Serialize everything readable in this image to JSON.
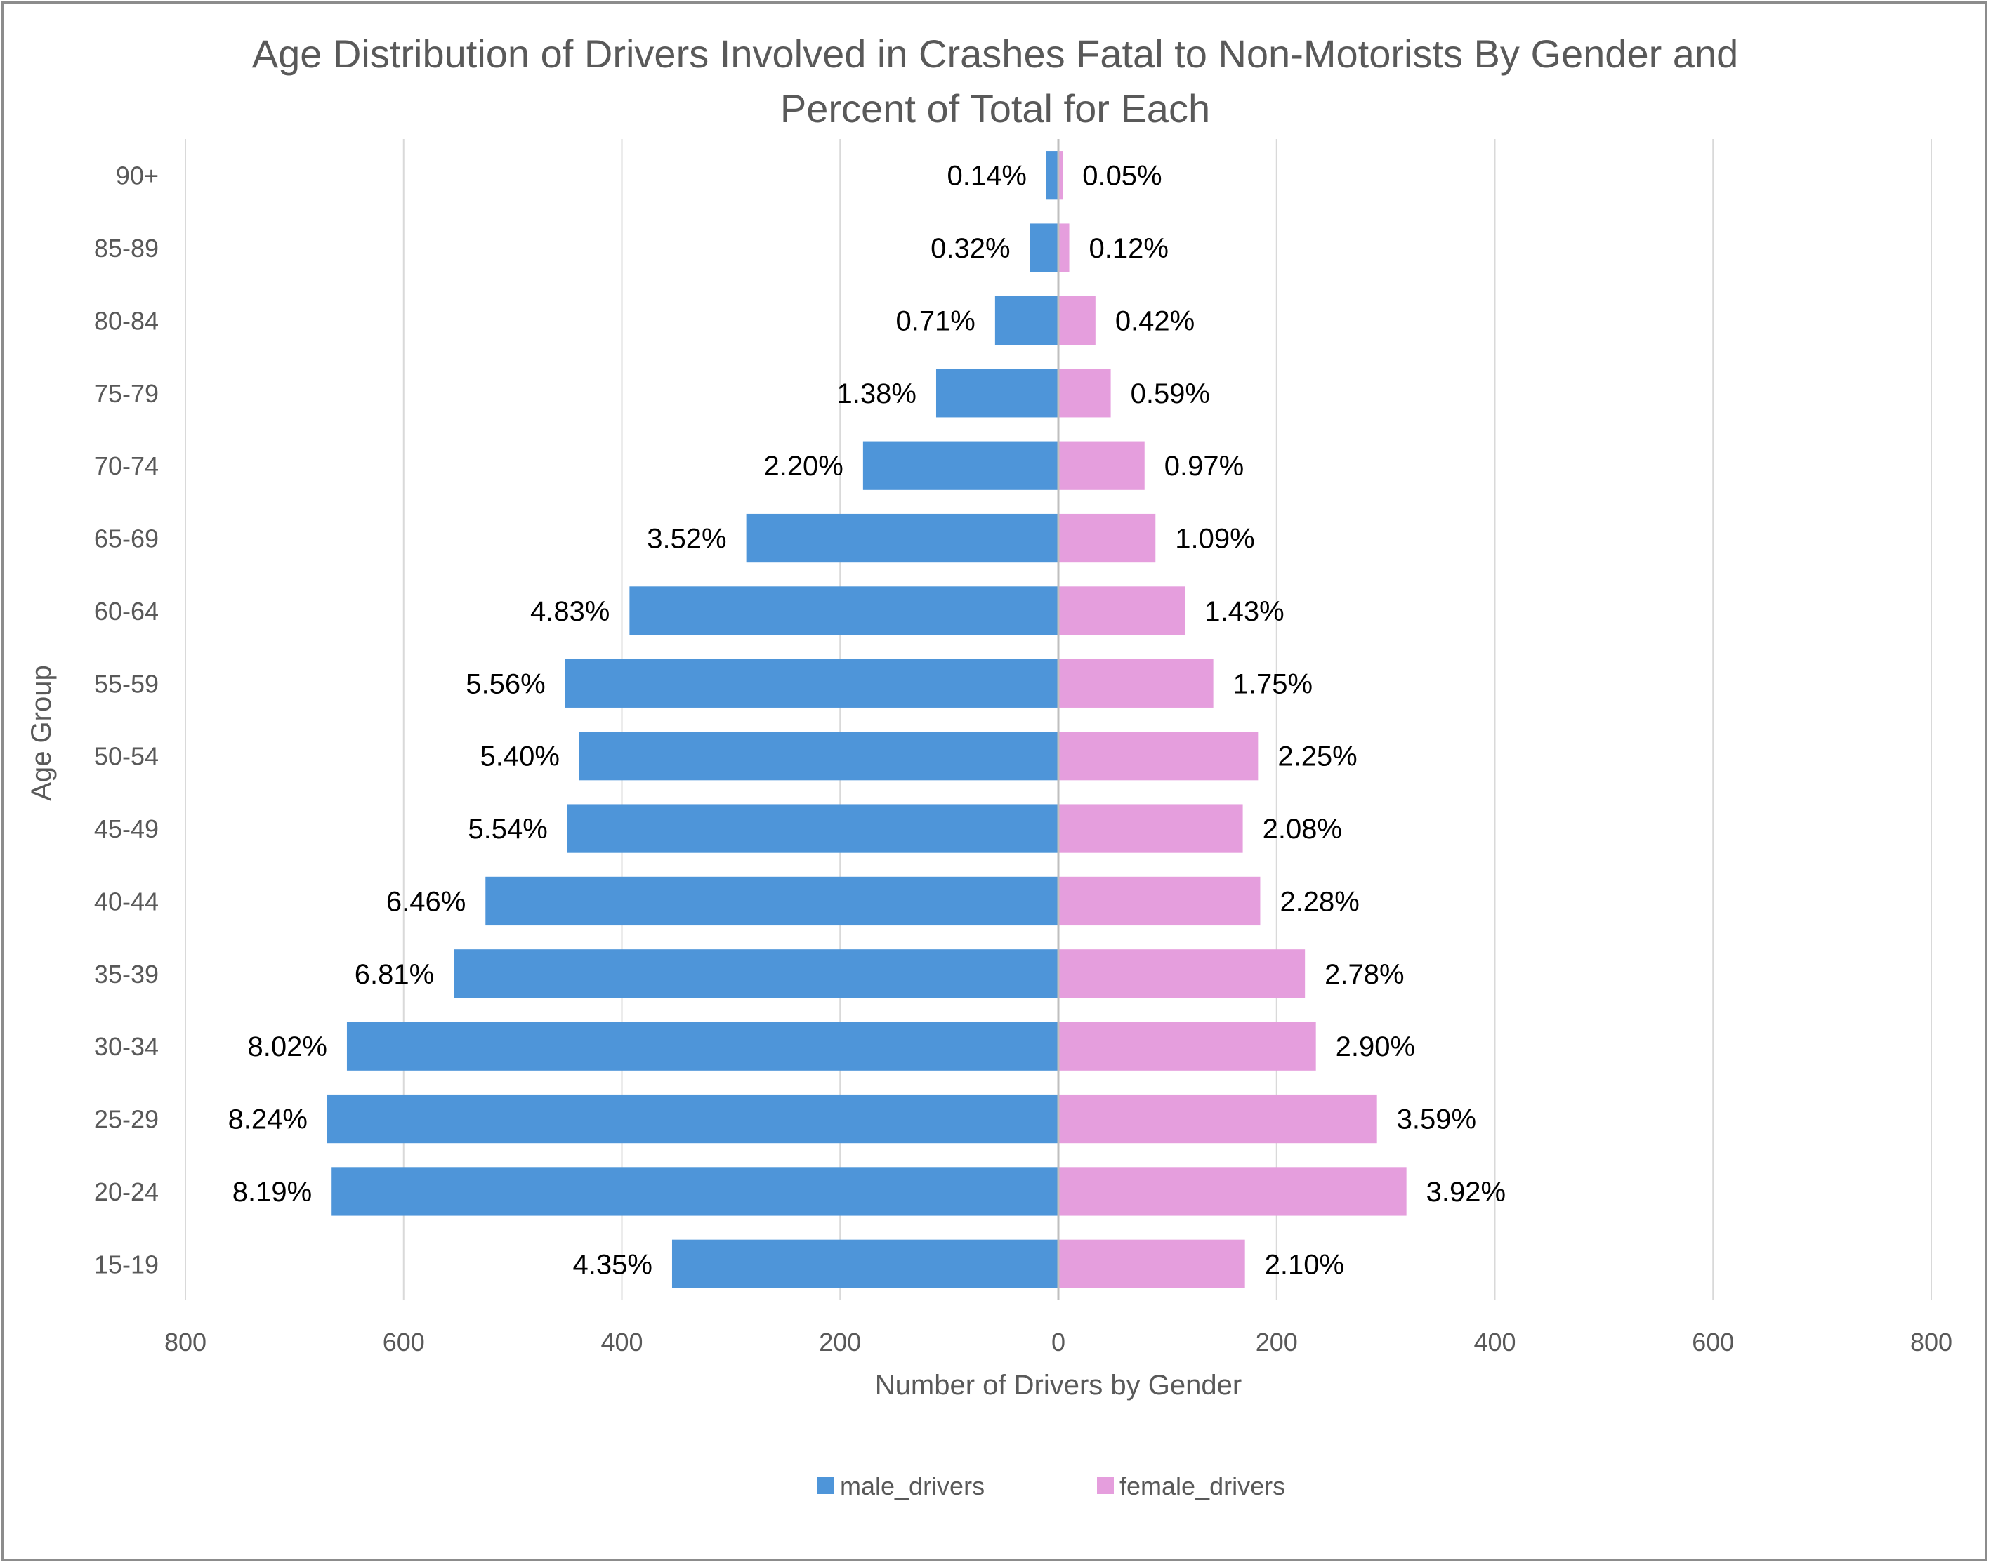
{
  "chart_data": {
    "type": "bar",
    "orientation": "horizontal",
    "title": "Age Distribution of Drivers Involved in Crashes Fatal to Non-Motorists By Gender and Percent of Total for Each",
    "title_lines": [
      "Age Distribution of Drivers Involved in Crashes Fatal to Non-Motorists By Gender and",
      "Percent of Total for Each"
    ],
    "xlabel": "Number of  Drivers by Gender",
    "ylabel": "Age Group",
    "xlim": [
      -800,
      800
    ],
    "x_ticks": [
      -800,
      -600,
      -400,
      -200,
      0,
      200,
      400,
      600,
      800
    ],
    "x_tick_labels": [
      "800",
      "600",
      "400",
      "200",
      "0",
      "200",
      "400",
      "600",
      "800"
    ],
    "grid": true,
    "legend_position": "bottom",
    "categories": [
      "15-19",
      "20-24",
      "25-29",
      "30-34",
      "35-39",
      "40-44",
      "45-49",
      "50-54",
      "55-59",
      "60-64",
      "65-69",
      "70-74",
      "75-79",
      "80-84",
      "85-89",
      "90+"
    ],
    "series": [
      {
        "name": "male_drivers",
        "color": "#4E95D9",
        "values": [
          354,
          666,
          670,
          652,
          554,
          525,
          450,
          439,
          452,
          393,
          286,
          179,
          112,
          58,
          26,
          11
        ],
        "labels": [
          "4.35%",
          "8.19%",
          "8.24%",
          "8.02%",
          "6.81%",
          "6.46%",
          "5.54%",
          "5.40%",
          "5.56%",
          "4.83%",
          "3.52%",
          "2.20%",
          "1.38%",
          "0.71%",
          "0.32%",
          "0.14%"
        ]
      },
      {
        "name": "female_drivers",
        "color": "#E59EDD",
        "values": [
          171,
          319,
          292,
          236,
          226,
          185,
          169,
          183,
          142,
          116,
          89,
          79,
          48,
          34,
          10,
          4
        ],
        "labels": [
          "2.10%",
          "3.92%",
          "3.59%",
          "2.90%",
          "2.78%",
          "2.28%",
          "2.08%",
          "2.25%",
          "1.75%",
          "1.43%",
          "1.09%",
          "0.97%",
          "0.59%",
          "0.42%",
          "0.12%",
          "0.05%"
        ]
      }
    ]
  }
}
